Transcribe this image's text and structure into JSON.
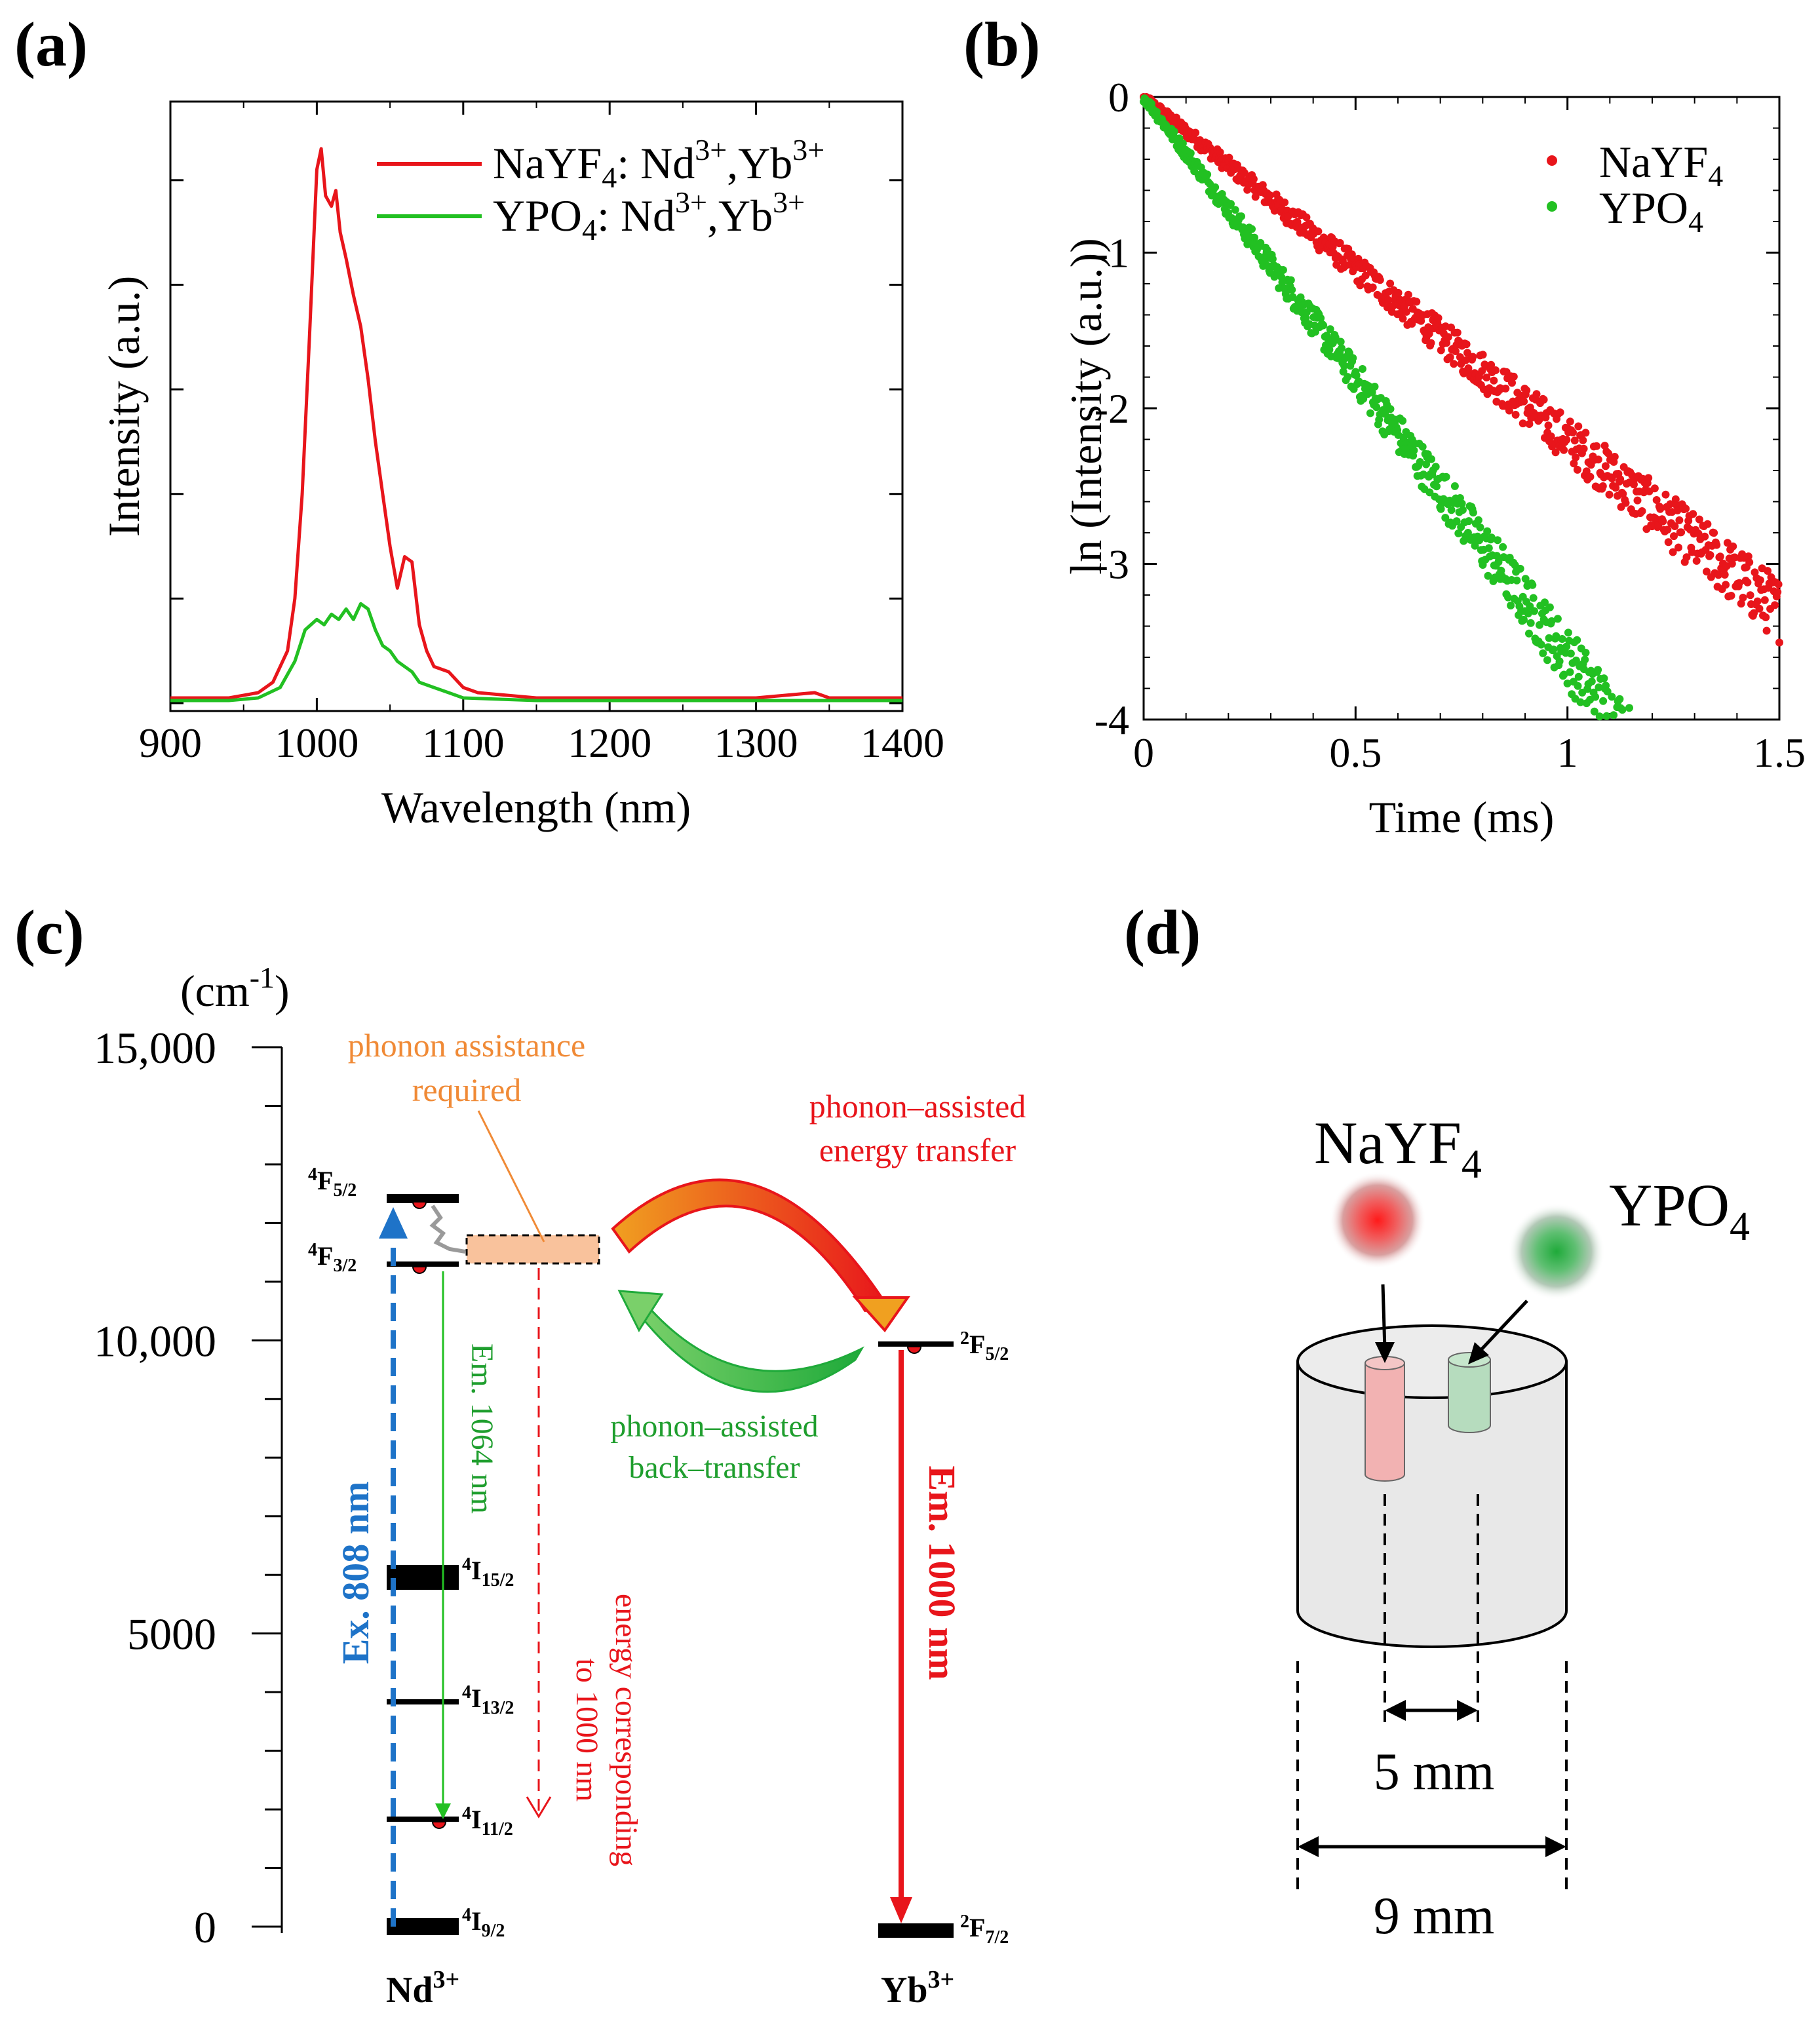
{
  "panel_labels": {
    "a": "(a)",
    "b": "(b)",
    "c": "(c)",
    "d": "(d)"
  },
  "colors": {
    "red": "#e8151b",
    "green": "#22c022",
    "green_dark": "#1f9e2e",
    "blue": "#1e73c8",
    "orange": "#f08a36",
    "orange_fill": "#f9c29c",
    "black": "#000000"
  },
  "chart_data": [
    {
      "id": "a",
      "type": "line",
      "xlabel": "Wavelength (nm)",
      "ylabel": "Intensity (a.u.)",
      "xlim": [
        900,
        1400
      ],
      "ylim": [
        0,
        1.1
      ],
      "xticks": [
        900,
        1000,
        1100,
        1200,
        1300,
        1400
      ],
      "yticks_labeled": false,
      "legend_position": "top-right",
      "series": [
        {
          "name": "NaYF4: Nd3+,Yb3+",
          "name_base": "NaYF",
          "name_sub": "4",
          "name_mid": ": Nd",
          "name_sup1": "3+",
          "name_mid2": ",Yb",
          "name_sup2": "3+",
          "color": "#e8151b",
          "x": [
            900,
            940,
            960,
            970,
            980,
            985,
            990,
            995,
            1000,
            1003,
            1006,
            1010,
            1013,
            1016,
            1020,
            1025,
            1030,
            1035,
            1040,
            1045,
            1050,
            1055,
            1060,
            1065,
            1070,
            1075,
            1080,
            1090,
            1100,
            1110,
            1130,
            1150,
            1200,
            1250,
            1300,
            1340,
            1350,
            1400
          ],
          "y": [
            0.01,
            0.01,
            0.02,
            0.04,
            0.1,
            0.2,
            0.4,
            0.7,
            1.02,
            1.06,
            0.97,
            0.95,
            0.98,
            0.9,
            0.85,
            0.78,
            0.72,
            0.62,
            0.5,
            0.4,
            0.3,
            0.22,
            0.28,
            0.27,
            0.15,
            0.1,
            0.07,
            0.06,
            0.03,
            0.02,
            0.015,
            0.01,
            0.01,
            0.01,
            0.01,
            0.02,
            0.01,
            0.01
          ]
        },
        {
          "name": "YPO4: Nd3+,Yb3+",
          "name_base": "YPO",
          "name_sub": "4",
          "name_mid": ": Nd",
          "name_sup1": "3+",
          "name_mid2": ",Yb",
          "name_sup2": "3+",
          "color": "#22c022",
          "x": [
            900,
            940,
            960,
            975,
            985,
            992,
            1000,
            1005,
            1010,
            1015,
            1020,
            1025,
            1030,
            1035,
            1040,
            1045,
            1050,
            1055,
            1060,
            1065,
            1070,
            1080,
            1090,
            1100,
            1150,
            1200,
            1300,
            1400
          ],
          "y": [
            0.005,
            0.005,
            0.01,
            0.03,
            0.08,
            0.14,
            0.16,
            0.15,
            0.17,
            0.16,
            0.18,
            0.16,
            0.19,
            0.18,
            0.14,
            0.11,
            0.1,
            0.08,
            0.07,
            0.06,
            0.04,
            0.03,
            0.02,
            0.01,
            0.005,
            0.005,
            0.005,
            0.005
          ]
        }
      ]
    },
    {
      "id": "b",
      "type": "scatter",
      "xlabel": "Time (ms)",
      "ylabel": "ln (Intensity (a.u.))",
      "xlim": [
        0,
        1.5
      ],
      "ylim": [
        -4,
        0
      ],
      "xticks": [
        0,
        0.5,
        1,
        1.5
      ],
      "xtick_labels": [
        "0",
        "0.5",
        "1",
        "1.5"
      ],
      "yticks": [
        0,
        -1,
        -2,
        -3,
        -4
      ],
      "ytick_labels": [
        "0",
        "-1",
        "-2",
        "-3",
        "-4"
      ],
      "legend_position": "top-right",
      "series": [
        {
          "name": "NaYF4",
          "name_base": "NaYF",
          "name_sub": "4",
          "color": "#e8151b",
          "slope": -2.2,
          "t_max": 1.5,
          "points": 700,
          "noise_growth": 0.12
        },
        {
          "name": "YPO4",
          "name_base": "YPO",
          "name_sub": "4",
          "color": "#22c022",
          "slope": -3.6,
          "t_max": 1.15,
          "points": 560,
          "noise_growth": 0.17
        }
      ]
    },
    {
      "id": "c",
      "type": "diagram",
      "yunit": "(cm",
      "yunit_sup": "-1",
      "yunit_close": ")",
      "ylim": [
        0,
        15000
      ],
      "yticks": [
        0,
        5000,
        10000,
        15000
      ],
      "ytick_labels": [
        "0",
        "5000",
        "10,000",
        "15,000"
      ],
      "levels": [
        {
          "label": "4",
          "sub_name": "F",
          "sub": "5/2",
          "energy": 12400,
          "ion": "Nd"
        },
        {
          "label": "4",
          "sub_name": "F",
          "sub": "3/2",
          "energy": 11300,
          "ion": "Nd"
        },
        {
          "label": "4",
          "sub_name": "I",
          "sub": "15/2",
          "energy": 6000,
          "ion": "Nd"
        },
        {
          "label": "4",
          "sub_name": "I",
          "sub": "13/2",
          "energy": 4000,
          "ion": "Nd"
        },
        {
          "label": "4",
          "sub_name": "I",
          "sub": "11/2",
          "energy": 2000,
          "ion": "Nd"
        },
        {
          "label": "4",
          "sub_name": "I",
          "sub": "9/2",
          "energy": 0,
          "ion": "Nd"
        },
        {
          "label": "2",
          "sub_name": "F",
          "sub": "5/2",
          "energy": 10000,
          "ion": "Yb"
        },
        {
          "label": "2",
          "sub_name": "F",
          "sub": "7/2",
          "energy": 0,
          "ion": "Yb"
        }
      ],
      "ion_labels": {
        "nd": "Nd",
        "nd_sup": "3+",
        "yb": "Yb",
        "yb_sup": "3+"
      },
      "annotations": {
        "phonon_required_1": "phonon assistance",
        "phonon_required_2": "required",
        "transfer_1": "phonon–assisted",
        "transfer_2": "energy transfer",
        "back_1": "phonon–assisted",
        "back_2": "back–transfer",
        "excitation": "Ex. 808 nm",
        "em1064": "Em. 1064 nm",
        "em1000": "Em. 1000 nm",
        "energy_corr_1": "energy corresponding",
        "energy_corr_2": "to 1000 nm"
      }
    }
  ],
  "panel_d": {
    "sample1": "NaYF",
    "sample1_sub": "4",
    "sample2": "YPO",
    "sample2_sub": "4",
    "dim_small": "5 mm",
    "dim_large": "9 mm"
  }
}
